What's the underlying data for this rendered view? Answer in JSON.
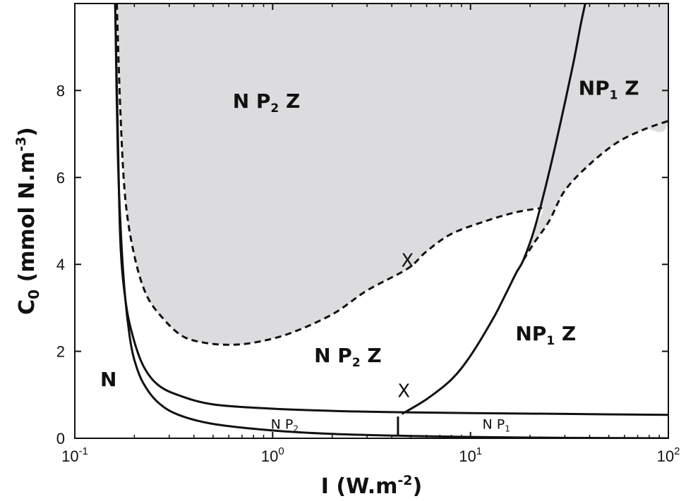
{
  "chart_data": {
    "type": "line",
    "title": "",
    "xlabel": {
      "base": "I (W.m",
      "sup": "-2",
      "tail": ")"
    },
    "ylabel": {
      "base": "C",
      "sub": "0",
      "mid": " (mmol N.m",
      "sup": "-3",
      "tail": ")"
    },
    "xscale": "log",
    "xlim": [
      0.1,
      100
    ],
    "ylim": [
      0,
      10
    ],
    "grid": false,
    "x_ticks": [
      {
        "value": 0.1,
        "base": "10",
        "exp": "-1"
      },
      {
        "value": 1,
        "base": "10",
        "exp": "0"
      },
      {
        "value": 10,
        "base": "10",
        "exp": "1"
      },
      {
        "value": 100,
        "base": "10",
        "exp": "2"
      }
    ],
    "y_ticks": [
      {
        "value": 0,
        "label": "0"
      },
      {
        "value": 2,
        "label": "2"
      },
      {
        "value": 4,
        "label": "4"
      },
      {
        "value": 6,
        "label": "6"
      },
      {
        "value": 8,
        "label": "8"
      }
    ],
    "shaded_color": "#dcdcde",
    "series": [
      {
        "style": "solid",
        "points": [
          [
            0.16,
            10
          ],
          [
            0.165,
            7
          ],
          [
            0.17,
            4.5
          ],
          [
            0.18,
            3.2
          ],
          [
            0.195,
            2.4
          ],
          [
            0.22,
            1.7
          ],
          [
            0.26,
            1.25
          ],
          [
            0.33,
            1.0
          ],
          [
            0.5,
            0.78
          ],
          [
            1.0,
            0.68
          ],
          [
            2.0,
            0.63
          ],
          [
            4.3,
            0.6
          ],
          [
            10,
            0.58
          ],
          [
            30,
            0.56
          ],
          [
            100,
            0.54
          ]
        ]
      },
      {
        "style": "solid",
        "points": [
          [
            0.16,
            10
          ],
          [
            0.165,
            6.5
          ],
          [
            0.172,
            4.5
          ],
          [
            0.18,
            3.2
          ],
          [
            0.19,
            2.3
          ],
          [
            0.2,
            1.8
          ],
          [
            0.22,
            1.3
          ],
          [
            0.26,
            0.85
          ],
          [
            0.33,
            0.55
          ],
          [
            0.5,
            0.33
          ],
          [
            1.0,
            0.18
          ],
          [
            2.0,
            0.1
          ],
          [
            4.3,
            0.06
          ],
          [
            10,
            0.03
          ],
          [
            30,
            0.01
          ],
          [
            100,
            0.0
          ]
        ]
      },
      {
        "style": "solid",
        "points": [
          [
            4.3,
            0.06
          ],
          [
            4.3,
            0.5
          ]
        ]
      },
      {
        "style": "solid",
        "points": [
          [
            4.5,
            0.56
          ],
          [
            6,
            0.9
          ],
          [
            8,
            1.35
          ],
          [
            10,
            1.9
          ],
          [
            13,
            2.75
          ],
          [
            15,
            3.3
          ],
          [
            17,
            3.8
          ],
          [
            18.5,
            4.1
          ],
          [
            21,
            4.8
          ],
          [
            24,
            5.8
          ],
          [
            28,
            7.1
          ],
          [
            33,
            8.6
          ],
          [
            36,
            9.5
          ],
          [
            38,
            10
          ]
        ]
      },
      {
        "style": "dashed",
        "points": [
          [
            0.163,
            10
          ],
          [
            0.17,
            7.5
          ],
          [
            0.18,
            5.5
          ],
          [
            0.2,
            4.2
          ],
          [
            0.23,
            3.3
          ],
          [
            0.28,
            2.75
          ],
          [
            0.35,
            2.35
          ],
          [
            0.45,
            2.2
          ],
          [
            0.6,
            2.15
          ],
          [
            0.8,
            2.2
          ],
          [
            1.2,
            2.4
          ],
          [
            2,
            2.85
          ],
          [
            3,
            3.4
          ],
          [
            4.8,
            3.9
          ],
          [
            6,
            4.3
          ],
          [
            8,
            4.7
          ],
          [
            12,
            5.0
          ],
          [
            17,
            5.2
          ],
          [
            23,
            5.3
          ]
        ]
      },
      {
        "style": "dashed",
        "points": [
          [
            18.5,
            4.1
          ],
          [
            21,
            4.5
          ],
          [
            25,
            5.0
          ],
          [
            30,
            5.7
          ],
          [
            40,
            6.3
          ],
          [
            55,
            6.8
          ],
          [
            75,
            7.1
          ],
          [
            100,
            7.3
          ]
        ]
      }
    ],
    "shaded_regions": [
      {
        "label": "NP2Z_stable_upper",
        "boundary": [
          [
            0.163,
            10
          ],
          [
            0.17,
            7.5
          ],
          [
            0.18,
            5.5
          ],
          [
            0.2,
            4.2
          ],
          [
            0.23,
            3.3
          ],
          [
            0.28,
            2.75
          ],
          [
            0.35,
            2.35
          ],
          [
            0.45,
            2.2
          ],
          [
            0.6,
            2.15
          ],
          [
            0.8,
            2.2
          ],
          [
            1.2,
            2.4
          ],
          [
            2,
            2.85
          ],
          [
            3,
            3.4
          ],
          [
            4.8,
            3.9
          ],
          [
            6,
            4.3
          ],
          [
            8,
            4.7
          ],
          [
            12,
            5.0
          ],
          [
            17,
            5.2
          ],
          [
            23,
            5.3
          ],
          [
            21,
            4.8
          ],
          [
            18.5,
            4.1
          ],
          [
            21,
            4.5
          ],
          [
            25,
            5.0
          ],
          [
            30,
            5.7
          ],
          [
            40,
            6.3
          ],
          [
            55,
            6.8
          ],
          [
            75,
            7.1
          ],
          [
            100,
            7.3
          ],
          [
            100,
            10
          ]
        ]
      }
    ],
    "annotations": [
      {
        "parts": [
          {
            "t": "N P"
          },
          {
            "t": "2",
            "sub": true
          },
          {
            "t": " Z"
          }
        ],
        "x": 0.93,
        "y": 7.6,
        "style": "region"
      },
      {
        "parts": [
          {
            "t": "NP"
          },
          {
            "t": "1",
            "sub": true
          },
          {
            "t": " Z"
          }
        ],
        "x": 50,
        "y": 7.9,
        "style": "region"
      },
      {
        "parts": [
          {
            "t": "N P"
          },
          {
            "t": "2",
            "sub": true
          },
          {
            "t": " Z"
          }
        ],
        "x": 2.4,
        "y": 1.75,
        "style": "region"
      },
      {
        "parts": [
          {
            "t": "NP"
          },
          {
            "t": "1",
            "sub": true
          },
          {
            "t": " Z"
          }
        ],
        "x": 24,
        "y": 2.25,
        "style": "region"
      },
      {
        "parts": [
          {
            "t": "N"
          }
        ],
        "x": 0.148,
        "y": 1.2,
        "style": "region"
      },
      {
        "parts": [
          {
            "t": "N P"
          },
          {
            "t": "2",
            "sub": true
          }
        ],
        "x": 1.15,
        "y": 0.22,
        "style": "small"
      },
      {
        "parts": [
          {
            "t": "N P"
          },
          {
            "t": "1",
            "sub": true
          }
        ],
        "x": 13.5,
        "y": 0.22,
        "style": "small"
      },
      {
        "parts": [
          {
            "t": "X"
          }
        ],
        "x": 4.8,
        "y": 3.95,
        "style": "mark"
      },
      {
        "parts": [
          {
            "t": "X"
          }
        ],
        "x": 4.6,
        "y": 0.95,
        "style": "mark"
      }
    ]
  }
}
